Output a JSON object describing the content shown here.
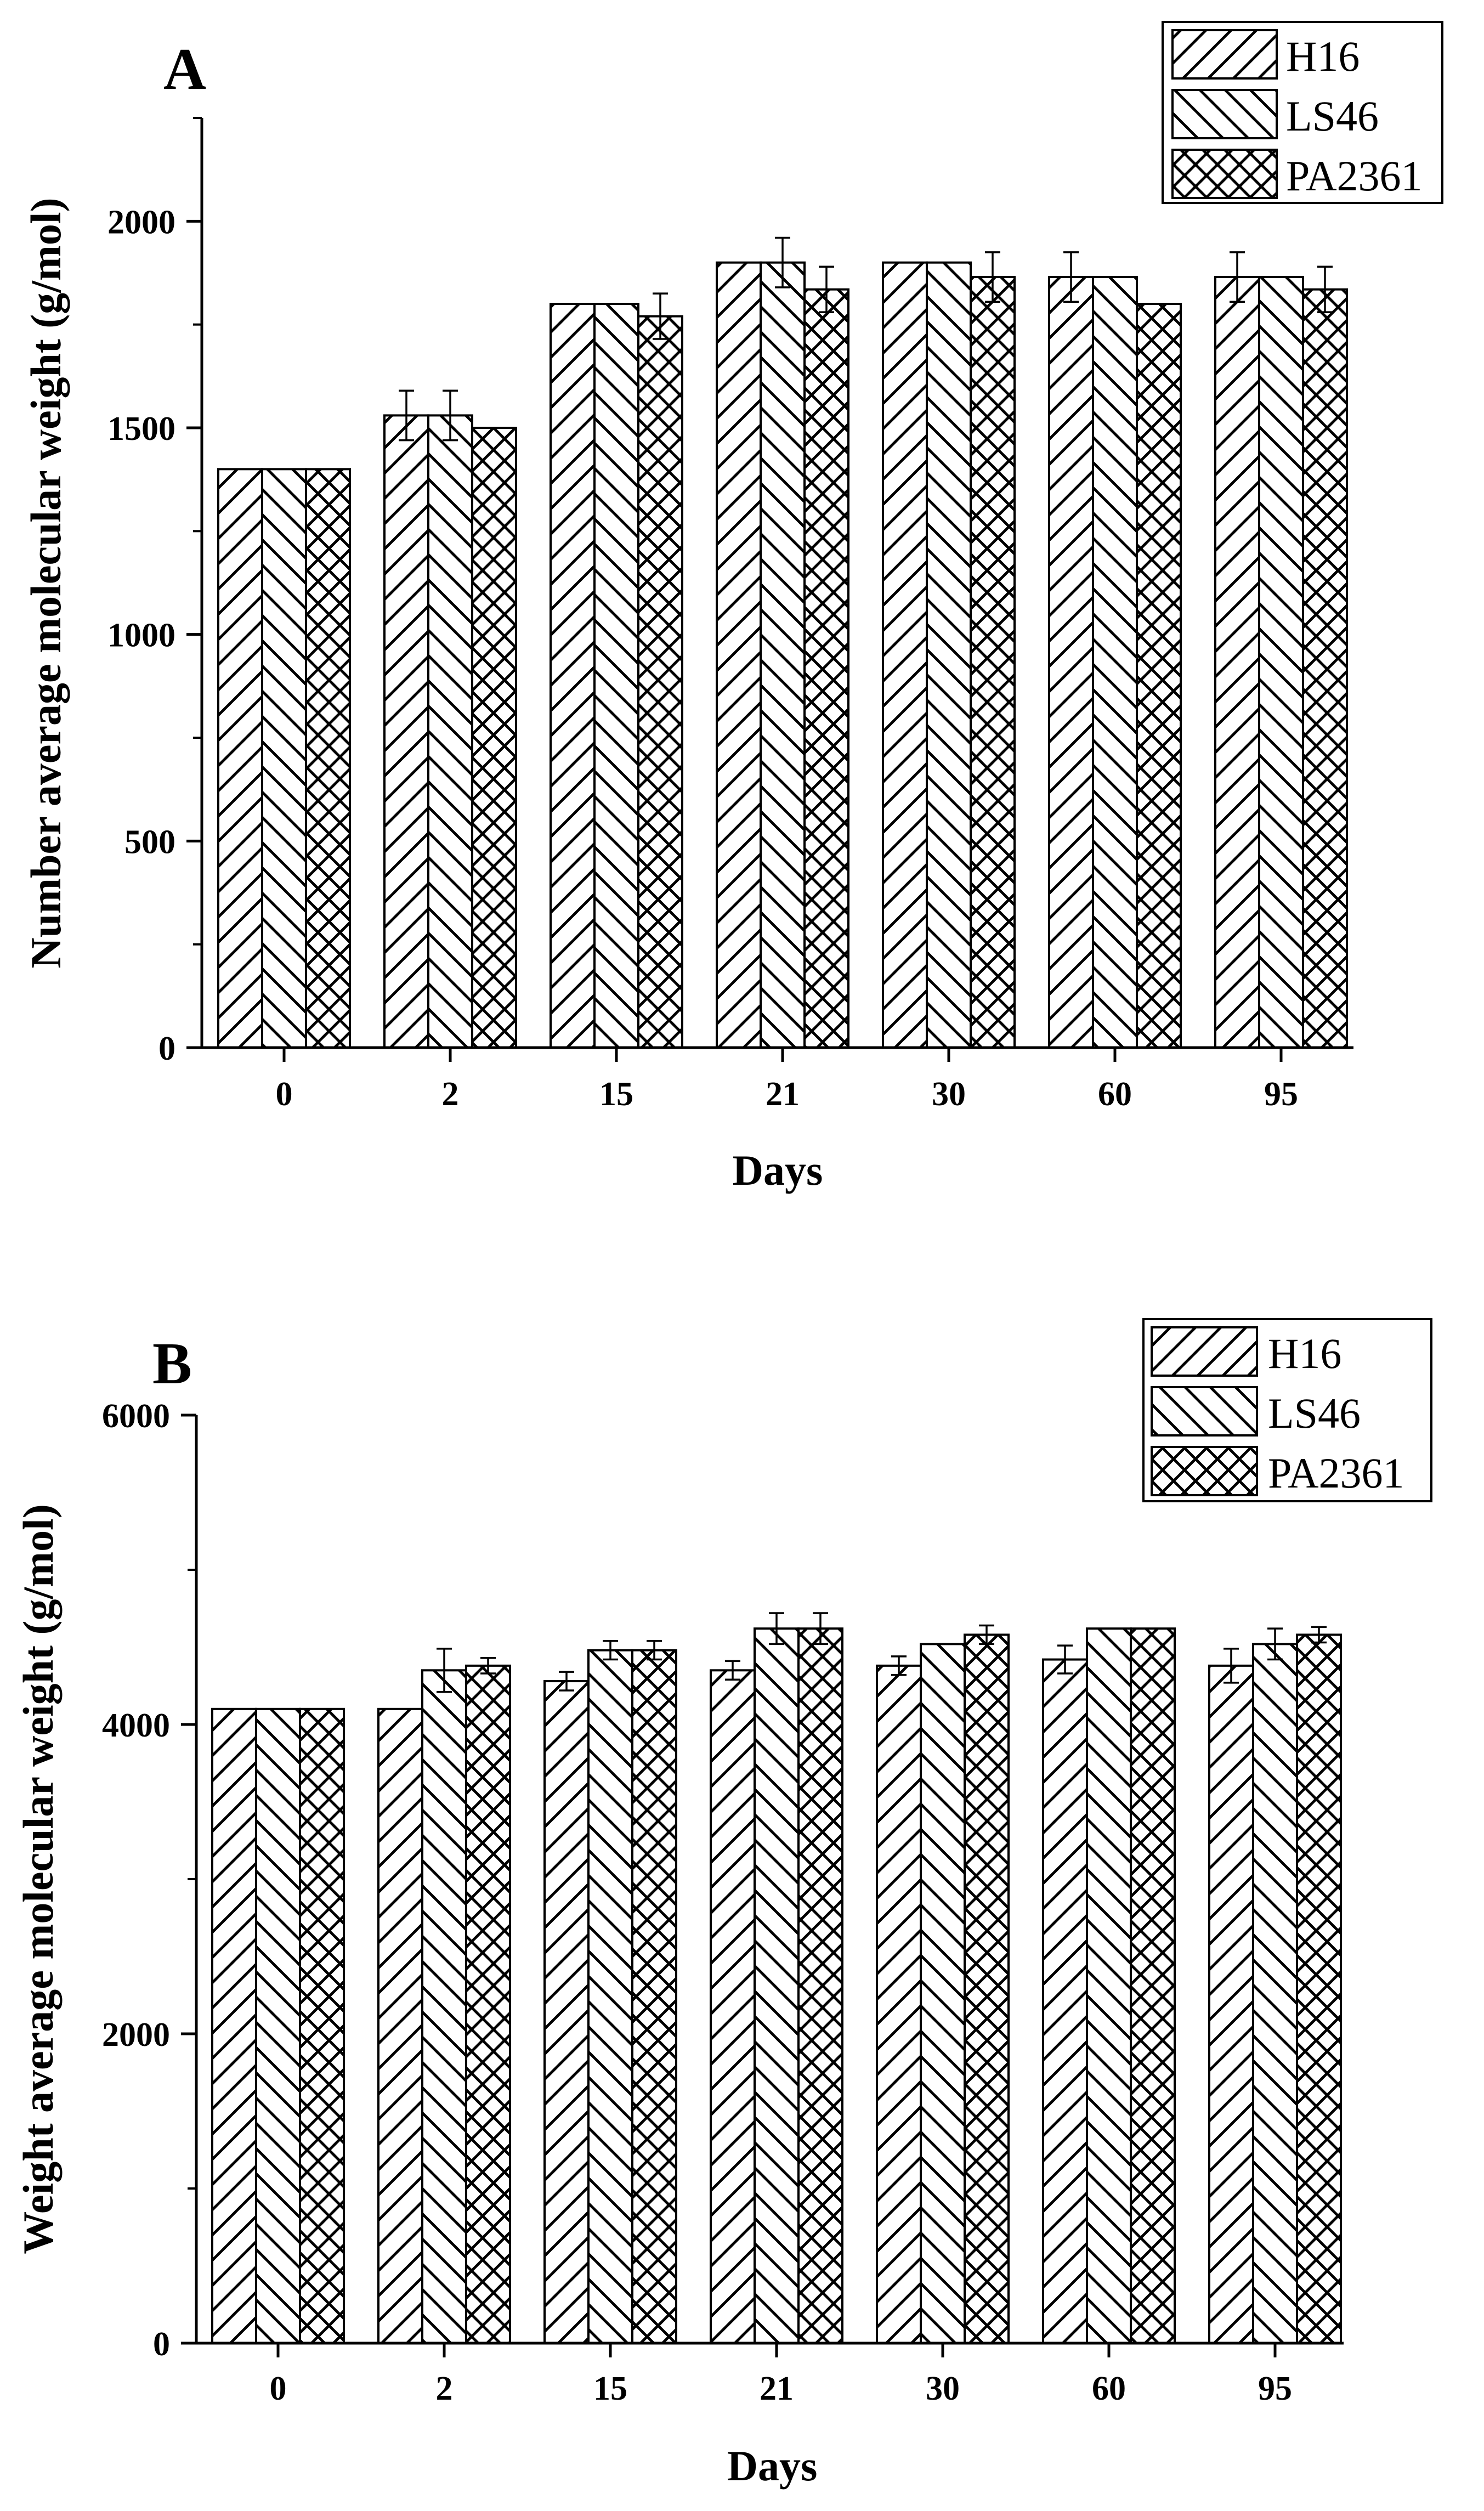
{
  "chart_data": [
    {
      "type": "bar",
      "panel_label": "A",
      "title": "",
      "xlabel": "Days",
      "ylabel": "Number average molecular weight (g/mol)",
      "categories": [
        "0",
        "2",
        "15",
        "21",
        "30",
        "60",
        "95"
      ],
      "ylim": [
        0,
        2250
      ],
      "yticks": [
        0,
        500,
        1000,
        1500,
        2000
      ],
      "ytick_labels": [
        "0",
        "500",
        "1000",
        "1500",
        "2000"
      ],
      "minor_yticks": [
        250,
        750,
        1250,
        1750,
        2250
      ],
      "legend_position": "top-right",
      "series": [
        {
          "name": "H16",
          "pattern": "hatch-forward",
          "values": [
            1400,
            1530,
            1800,
            1900,
            1900,
            1865,
            1865
          ],
          "errors": [
            0,
            60,
            0,
            0,
            0,
            60,
            60
          ]
        },
        {
          "name": "LS46",
          "pattern": "hatch-back",
          "values": [
            1400,
            1530,
            1800,
            1900,
            1900,
            1865,
            1865
          ],
          "errors": [
            0,
            60,
            0,
            60,
            0,
            0,
            0
          ]
        },
        {
          "name": "PA2361",
          "pattern": "crosshatch",
          "values": [
            1400,
            1500,
            1770,
            1835,
            1865,
            1800,
            1835
          ],
          "errors": [
            0,
            0,
            55,
            55,
            60,
            0,
            55
          ]
        }
      ]
    },
    {
      "type": "bar",
      "panel_label": "B",
      "title": "",
      "xlabel": "Days",
      "ylabel": "Weight average molecular weight (g/mol)",
      "categories": [
        "0",
        "2",
        "15",
        "21",
        "30",
        "60",
        "95"
      ],
      "ylim": [
        0,
        6000
      ],
      "yticks": [
        0,
        2000,
        4000,
        6000
      ],
      "ytick_labels": [
        "0",
        "2000",
        "4000",
        "6000"
      ],
      "minor_yticks": [
        1000,
        3000,
        5000
      ],
      "legend_position": "top-right",
      "series": [
        {
          "name": "H16",
          "pattern": "hatch-forward",
          "values": [
            4100,
            4100,
            4280,
            4350,
            4380,
            4420,
            4380
          ],
          "errors": [
            0,
            0,
            60,
            60,
            60,
            90,
            110
          ]
        },
        {
          "name": "LS46",
          "pattern": "hatch-back",
          "values": [
            4100,
            4350,
            4480,
            4620,
            4520,
            4620,
            4520
          ],
          "errors": [
            0,
            140,
            60,
            100,
            0,
            0,
            100
          ]
        },
        {
          "name": "PA2361",
          "pattern": "crosshatch",
          "values": [
            4100,
            4380,
            4480,
            4620,
            4580,
            4620,
            4580
          ],
          "errors": [
            0,
            50,
            60,
            100,
            60,
            0,
            50
          ]
        }
      ]
    }
  ]
}
